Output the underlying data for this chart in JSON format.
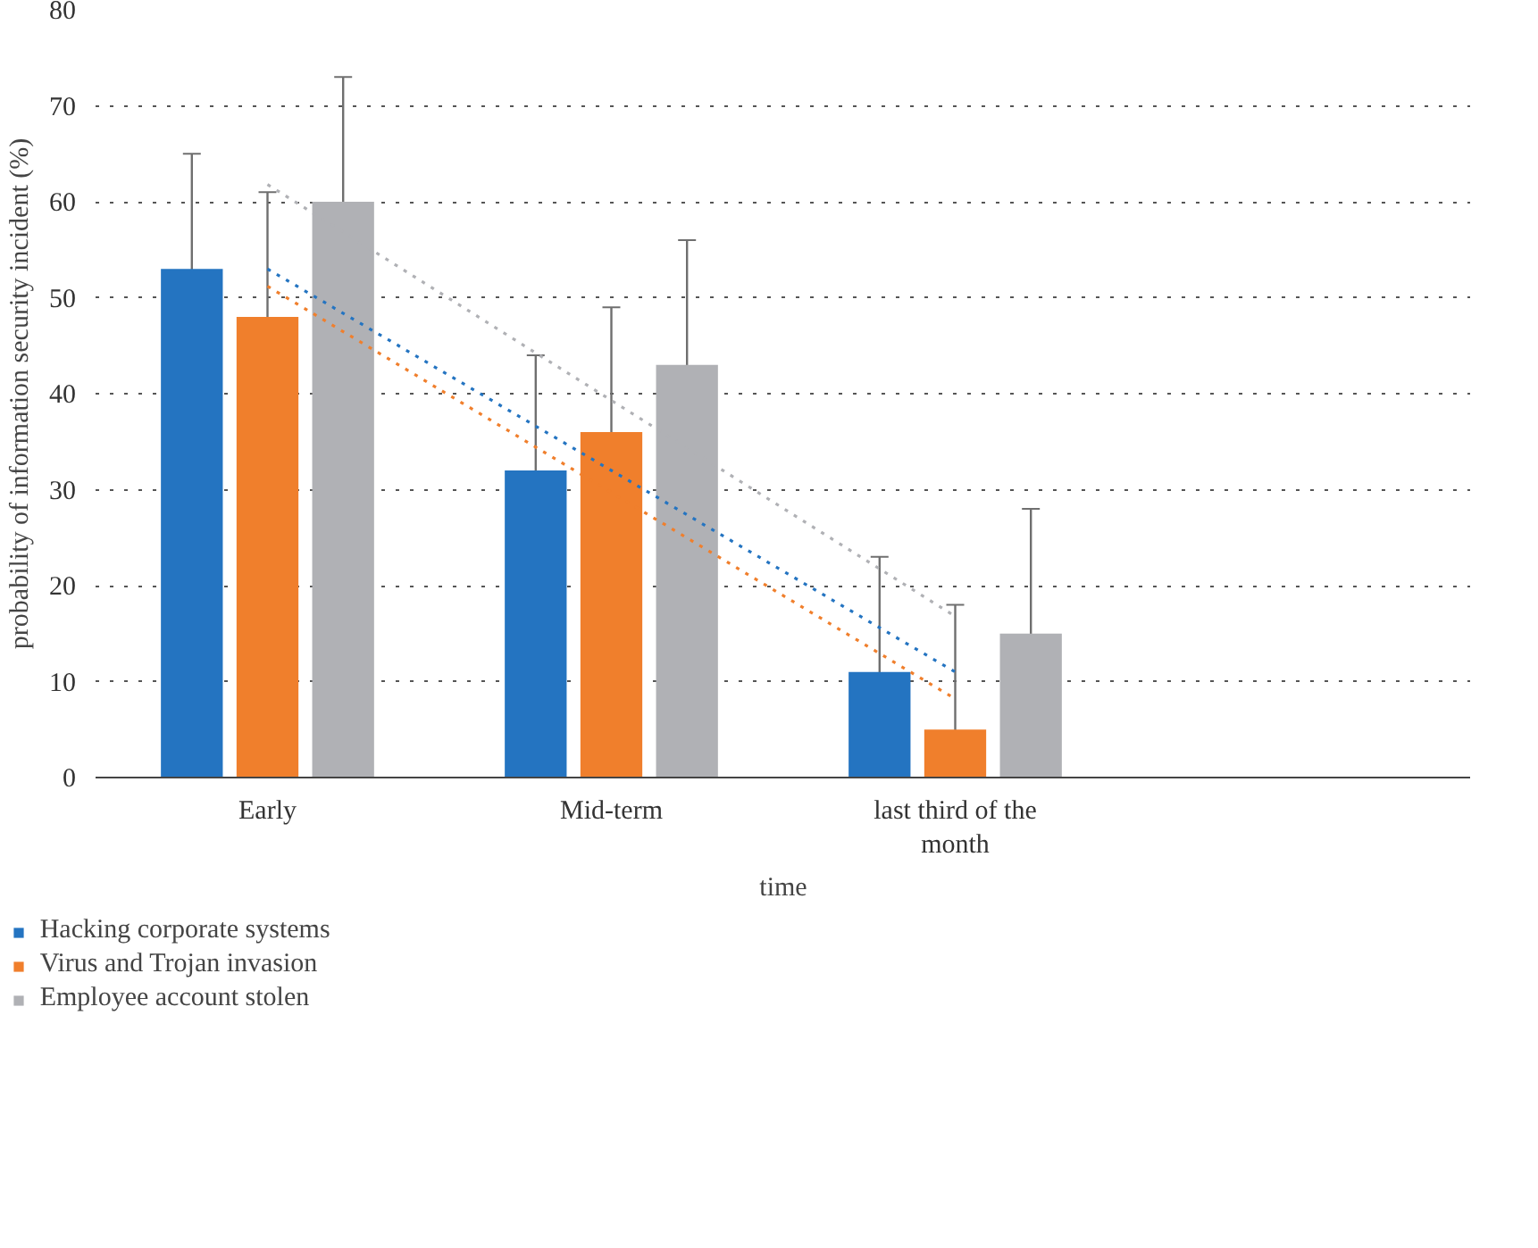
{
  "chart_data": {
    "type": "bar",
    "xlabel": "time",
    "ylabel": "probability of information security incident (%)",
    "categories": [
      "Early",
      "Mid-term",
      "last third of the month",
      null
    ],
    "series": [
      {
        "name": "Hacking corporate systems",
        "color": "#2474c1",
        "values": [
          53,
          32,
          11,
          null
        ],
        "errors": [
          12,
          12,
          [
            0,
            23
          ],
          null
        ]
      },
      {
        "name": "Virus and Trojan invasion",
        "color": "#f07f2c",
        "values": [
          48,
          36,
          5,
          null
        ],
        "errors": [
          13,
          13,
          [
            0,
            18
          ],
          null
        ]
      },
      {
        "name": "Employee account stolen",
        "color": "#b0b1b5",
        "values": [
          60,
          43,
          15,
          null
        ],
        "errors": [
          13,
          13,
          13,
          null
        ]
      },
      {
        "type": "line",
        "color": "#2474c1",
        "line_style": "dotted",
        "values": [
          53,
          32,
          11,
          null
        ]
      },
      {
        "type": "line",
        "color": "#f07f2c",
        "line_style": "dotted",
        "values": [
          51.2,
          29.7,
          8.2,
          null
        ]
      },
      {
        "type": "line",
        "color": "#b0b1b5",
        "line_style": "dotted",
        "values": [
          61.8,
          39.3,
          16.8,
          null
        ]
      }
    ],
    "ylim": [
      0,
      80
    ],
    "yticks": [
      0,
      10,
      20,
      30,
      40,
      50,
      60,
      70,
      80
    ],
    "grid": "y",
    "legend": "bottom"
  }
}
